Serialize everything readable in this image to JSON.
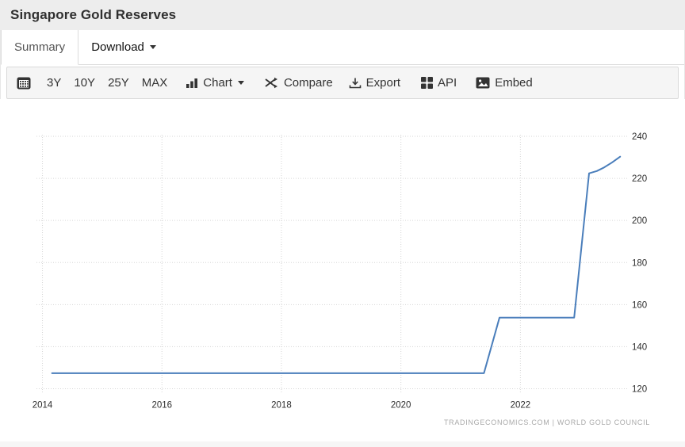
{
  "header": {
    "title": "Singapore Gold Reserves"
  },
  "tabs": [
    {
      "label": "Summary",
      "active": true
    },
    {
      "label": "Download",
      "active": false,
      "has_caret": true
    }
  ],
  "toolbar": {
    "range_buttons": [
      "3Y",
      "10Y",
      "25Y",
      "MAX"
    ],
    "chart_label": "Chart",
    "compare_label": "Compare",
    "export_label": "Export",
    "api_label": "API",
    "embed_label": "Embed"
  },
  "icons": {
    "calendar-icon": "dark calendar grid glyph",
    "chart-type-icon": "ascending bars glyph",
    "compare-icon": "shuffle crossing arrows glyph",
    "export-icon": "download-to-tray glyph",
    "api-icon": "four squares grid glyph",
    "embed-icon": "picture glyph"
  },
  "attribution": "TRADINGECONOMICS.COM | WORLD GOLD COUNCIL",
  "colors": {
    "series_line": "#4a7ebb",
    "gridline": "#d6d6d6",
    "titlebar_bg": "#ededed",
    "toolbar_bg": "#f5f5f5",
    "axis_text": "#2d2d2d",
    "attribution_text": "#a9a9a9"
  },
  "chart_data": {
    "type": "line",
    "title": "Singapore Gold Reserves",
    "x_ticks": [
      2014,
      2016,
      2018,
      2020,
      2022
    ],
    "y_ticks": [
      120,
      140,
      160,
      180,
      200,
      220,
      240
    ],
    "x_range": [
      2013.9,
      2023.8
    ],
    "y_range": [
      120,
      240
    ],
    "y_axis_side": "right",
    "grid": "dotted",
    "legend": false,
    "series": [
      {
        "name": "Singapore Gold Reserves",
        "color": "#4a7ebb",
        "points": [
          [
            2014.16,
            127.4
          ],
          [
            2021.39,
            127.4
          ],
          [
            2021.65,
            153.8
          ],
          [
            2022.9,
            153.8
          ],
          [
            2023.15,
            222.4
          ],
          [
            2023.28,
            223.5
          ],
          [
            2023.4,
            225.2
          ],
          [
            2023.53,
            227.5
          ],
          [
            2023.67,
            230.3
          ]
        ]
      }
    ]
  }
}
